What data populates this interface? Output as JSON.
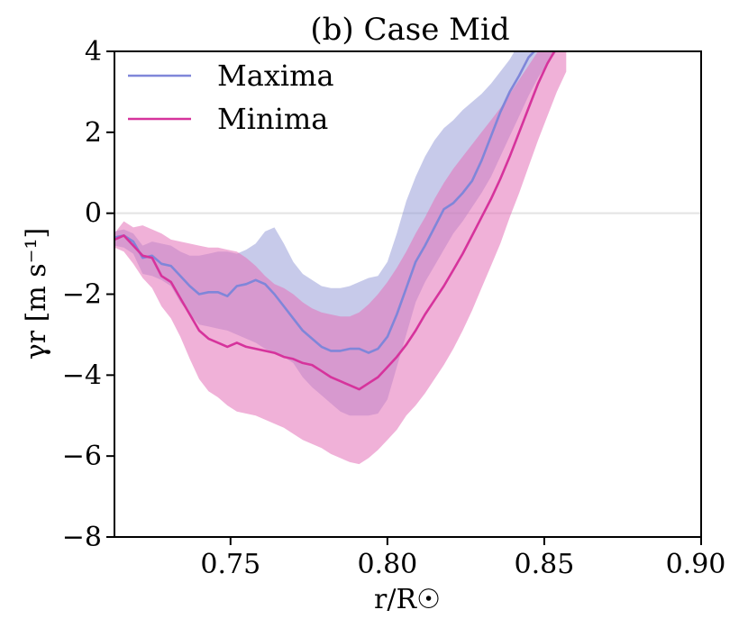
{
  "chart_data": {
    "type": "line",
    "title": "(b) Case Mid",
    "xlabel": "r/R☉",
    "ylabel": "γr [m s⁻¹]",
    "xlim": [
      0.713,
      0.9
    ],
    "ylim": [
      -8,
      4
    ],
    "x_ticks": [
      0.75,
      0.8,
      0.85,
      0.9
    ],
    "x_tick_labels": [
      "0.75",
      "0.80",
      "0.85",
      "0.90"
    ],
    "y_ticks": [
      -8,
      -6,
      -4,
      -2,
      0,
      2,
      4
    ],
    "y_tick_labels": [
      "−8",
      "−6",
      "−4",
      "−2",
      "0",
      "2",
      "4"
    ],
    "zero_line": 0,
    "legend": {
      "position": "top-left",
      "entries": [
        "Maxima",
        "Minima"
      ]
    },
    "series": [
      {
        "name": "Maxima",
        "color": "#7f86d9",
        "band_color": "#8f96d6",
        "x": [
          0.713,
          0.716,
          0.719,
          0.722,
          0.725,
          0.728,
          0.731,
          0.734,
          0.737,
          0.74,
          0.743,
          0.746,
          0.749,
          0.752,
          0.755,
          0.758,
          0.761,
          0.764,
          0.767,
          0.77,
          0.773,
          0.776,
          0.779,
          0.782,
          0.785,
          0.788,
          0.791,
          0.794,
          0.797,
          0.8,
          0.803,
          0.806,
          0.809,
          0.812,
          0.815,
          0.818,
          0.821,
          0.824,
          0.827,
          0.83,
          0.833,
          0.836,
          0.839,
          0.842,
          0.845,
          0.848,
          0.851,
          0.854,
          0.857
        ],
        "y": [
          -0.6,
          -0.55,
          -0.7,
          -1.1,
          -1.05,
          -1.25,
          -1.3,
          -1.55,
          -1.8,
          -2.0,
          -1.95,
          -1.95,
          -2.05,
          -1.8,
          -1.75,
          -1.65,
          -1.75,
          -2.0,
          -2.3,
          -2.6,
          -2.9,
          -3.1,
          -3.3,
          -3.4,
          -3.4,
          -3.35,
          -3.35,
          -3.45,
          -3.35,
          -3.05,
          -2.5,
          -1.85,
          -1.2,
          -0.8,
          -0.35,
          0.1,
          0.25,
          0.5,
          0.8,
          1.3,
          1.9,
          2.5,
          3.0,
          3.4,
          3.85,
          4.1,
          4.2,
          4.3,
          4.4
        ],
        "upper": [
          -0.45,
          -0.4,
          -0.5,
          -0.8,
          -0.7,
          -0.75,
          -0.8,
          -0.95,
          -1.05,
          -1.05,
          -1.0,
          -0.95,
          -0.95,
          -1.0,
          -0.9,
          -0.75,
          -0.45,
          -0.35,
          -0.75,
          -1.2,
          -1.5,
          -1.65,
          -1.8,
          -1.85,
          -1.85,
          -1.8,
          -1.7,
          -1.6,
          -1.55,
          -1.2,
          -0.5,
          0.3,
          0.9,
          1.4,
          1.8,
          2.1,
          2.3,
          2.55,
          2.75,
          2.95,
          3.2,
          3.5,
          3.8,
          4.2,
          4.6,
          5.0,
          5.2,
          5.4,
          5.6
        ],
        "lower": [
          -0.8,
          -0.85,
          -1.0,
          -1.5,
          -1.55,
          -1.65,
          -1.8,
          -2.2,
          -2.5,
          -2.75,
          -2.8,
          -2.85,
          -2.9,
          -3.0,
          -3.1,
          -3.2,
          -3.35,
          -3.45,
          -3.55,
          -3.7,
          -4.05,
          -4.3,
          -4.5,
          -4.7,
          -4.9,
          -5.0,
          -5.0,
          -5.0,
          -4.95,
          -4.6,
          -3.8,
          -3.0,
          -2.2,
          -1.7,
          -1.3,
          -0.9,
          -0.5,
          -0.2,
          0.15,
          0.5,
          0.9,
          1.4,
          1.9,
          2.4,
          2.9,
          3.35,
          3.7,
          4.0,
          4.3
        ]
      },
      {
        "name": "Minima",
        "color": "#d6339c",
        "band_color": "#e471b8",
        "x": [
          0.713,
          0.716,
          0.719,
          0.722,
          0.725,
          0.728,
          0.731,
          0.734,
          0.737,
          0.74,
          0.743,
          0.746,
          0.749,
          0.752,
          0.755,
          0.758,
          0.761,
          0.764,
          0.767,
          0.77,
          0.773,
          0.776,
          0.779,
          0.782,
          0.785,
          0.788,
          0.791,
          0.794,
          0.797,
          0.8,
          0.803,
          0.806,
          0.809,
          0.812,
          0.815,
          0.818,
          0.821,
          0.824,
          0.827,
          0.83,
          0.833,
          0.836,
          0.839,
          0.842,
          0.845,
          0.848,
          0.851,
          0.854,
          0.857
        ],
        "y": [
          -0.65,
          -0.55,
          -0.8,
          -1.05,
          -1.1,
          -1.55,
          -1.7,
          -2.1,
          -2.5,
          -2.9,
          -3.1,
          -3.2,
          -3.3,
          -3.2,
          -3.3,
          -3.35,
          -3.4,
          -3.45,
          -3.55,
          -3.6,
          -3.7,
          -3.75,
          -3.9,
          -4.05,
          -4.15,
          -4.25,
          -4.35,
          -4.2,
          -4.05,
          -3.8,
          -3.55,
          -3.25,
          -2.9,
          -2.5,
          -2.15,
          -1.8,
          -1.4,
          -1.0,
          -0.55,
          -0.1,
          0.35,
          0.85,
          1.4,
          2.0,
          2.6,
          3.2,
          3.7,
          4.1,
          4.3
        ],
        "upper": [
          -0.5,
          -0.2,
          -0.35,
          -0.3,
          -0.4,
          -0.5,
          -0.65,
          -0.7,
          -0.75,
          -0.8,
          -0.85,
          -0.85,
          -0.9,
          -0.95,
          -1.1,
          -1.3,
          -1.55,
          -1.75,
          -1.85,
          -2.0,
          -2.2,
          -2.35,
          -2.45,
          -2.5,
          -2.55,
          -2.55,
          -2.45,
          -2.25,
          -2.0,
          -1.7,
          -1.35,
          -0.95,
          -0.5,
          -0.1,
          0.35,
          0.75,
          1.1,
          1.4,
          1.7,
          2.0,
          2.3,
          2.6,
          2.95,
          3.3,
          3.65,
          4.0,
          4.35,
          4.6,
          4.8
        ],
        "lower": [
          -0.85,
          -0.95,
          -1.25,
          -1.6,
          -1.85,
          -2.3,
          -2.6,
          -3.05,
          -3.6,
          -4.1,
          -4.4,
          -4.55,
          -4.75,
          -4.9,
          -4.95,
          -5.0,
          -5.1,
          -5.2,
          -5.3,
          -5.45,
          -5.6,
          -5.7,
          -5.8,
          -5.95,
          -6.05,
          -6.15,
          -6.2,
          -6.05,
          -5.85,
          -5.6,
          -5.35,
          -5.0,
          -4.75,
          -4.45,
          -4.1,
          -3.75,
          -3.35,
          -2.9,
          -2.4,
          -1.85,
          -1.3,
          -0.75,
          -0.1,
          0.5,
          1.15,
          1.8,
          2.4,
          3.0,
          3.5
        ]
      }
    ]
  }
}
